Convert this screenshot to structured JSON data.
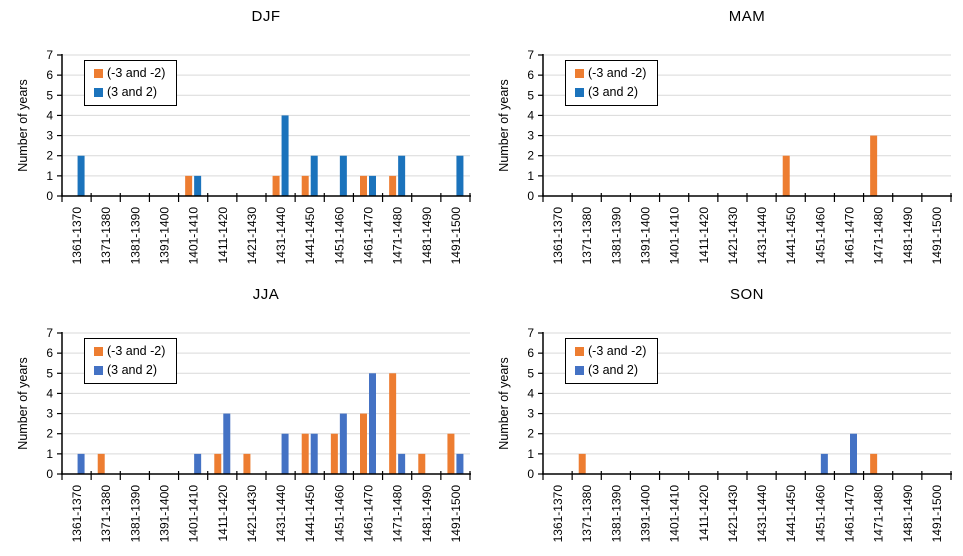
{
  "page": {
    "background": "#ffffff"
  },
  "style": {
    "orange": "#ED7D31",
    "blue_winter": "#1B73BC",
    "blue_summer": "#4472C4",
    "gridline_color": "#D9D9D9",
    "axis_color": "#000000"
  },
  "chart_data": [
    {
      "type": "bar",
      "title": "DJF",
      "xlabel": "",
      "ylabel": "Number of years",
      "ylim": [
        0,
        7
      ],
      "y_tick_step": 1,
      "grid": true,
      "legend_position": "top-left",
      "categories": [
        "1361-1370",
        "1371-1380",
        "1381-1390",
        "1391-1400",
        "1401-1410",
        "1411-1420",
        "1421-1430",
        "1431-1440",
        "1441-1450",
        "1451-1460",
        "1461-1470",
        "1471-1480",
        "1481-1490",
        "1491-1500"
      ],
      "series": [
        {
          "name": "(-3 and -2)",
          "color": "#ED7D31",
          "values": [
            0,
            0,
            0,
            0,
            1,
            0,
            0,
            1,
            1,
            0,
            1,
            1,
            0,
            0
          ]
        },
        {
          "name": "(3 and 2)",
          "color": "#1B73BC",
          "values": [
            2,
            0,
            0,
            0,
            1,
            0,
            0,
            4,
            2,
            2,
            1,
            2,
            0,
            2
          ]
        }
      ]
    },
    {
      "type": "bar",
      "title": "MAM",
      "xlabel": "",
      "ylabel": "Number of years",
      "ylim": [
        0,
        7
      ],
      "y_tick_step": 1,
      "grid": true,
      "legend_position": "top-left",
      "categories": [
        "1361-1370",
        "1371-1380",
        "1381-1390",
        "1391-1400",
        "1401-1410",
        "1411-1420",
        "1421-1430",
        "1431-1440",
        "1441-1450",
        "1451-1460",
        "1461-1470",
        "1471-1480",
        "1481-1490",
        "1491-1500"
      ],
      "series": [
        {
          "name": "(-3 and -2)",
          "color": "#ED7D31",
          "values": [
            0,
            0,
            0,
            0,
            0,
            0,
            0,
            0,
            2,
            0,
            0,
            3,
            0,
            0
          ]
        },
        {
          "name": "(3 and 2)",
          "color": "#1B73BC",
          "values": [
            0,
            0,
            0,
            0,
            0,
            0,
            0,
            0,
            0,
            0,
            0,
            0,
            0,
            0
          ]
        }
      ]
    },
    {
      "type": "bar",
      "title": "JJA",
      "xlabel": "",
      "ylabel": "Number of years",
      "ylim": [
        0,
        7
      ],
      "y_tick_step": 1,
      "grid": true,
      "legend_position": "top-left",
      "categories": [
        "1361-1370",
        "1371-1380",
        "1381-1390",
        "1391-1400",
        "1401-1410",
        "1411-1420",
        "1421-1430",
        "1431-1440",
        "1441-1450",
        "1451-1460",
        "1461-1470",
        "1471-1480",
        "1481-1490",
        "1491-1500"
      ],
      "series": [
        {
          "name": "(-3 and -2)",
          "color": "#ED7D31",
          "values": [
            0,
            1,
            0,
            0,
            0,
            1,
            1,
            0,
            2,
            2,
            3,
            5,
            1,
            2
          ]
        },
        {
          "name": "(3 and 2)",
          "color": "#4472C4",
          "values": [
            1,
            0,
            0,
            0,
            1,
            3,
            0,
            2,
            2,
            3,
            5,
            1,
            0,
            1
          ]
        }
      ]
    },
    {
      "type": "bar",
      "title": "SON",
      "xlabel": "",
      "ylabel": "Number of years",
      "ylim": [
        0,
        7
      ],
      "y_tick_step": 1,
      "grid": true,
      "legend_position": "top-left",
      "categories": [
        "1361-1370",
        "1371-1380",
        "1381-1390",
        "1391-1400",
        "1401-1410",
        "1411-1420",
        "1421-1430",
        "1431-1440",
        "1441-1450",
        "1451-1460",
        "1461-1470",
        "1471-1480",
        "1481-1490",
        "1491-1500"
      ],
      "series": [
        {
          "name": "(-3 and -2)",
          "color": "#ED7D31",
          "values": [
            0,
            1,
            0,
            0,
            0,
            0,
            0,
            0,
            0,
            0,
            0,
            1,
            0,
            0
          ]
        },
        {
          "name": "(3 and 2)",
          "color": "#4472C4",
          "values": [
            0,
            0,
            0,
            0,
            0,
            0,
            0,
            0,
            0,
            1,
            2,
            0,
            0,
            0
          ]
        }
      ]
    }
  ]
}
